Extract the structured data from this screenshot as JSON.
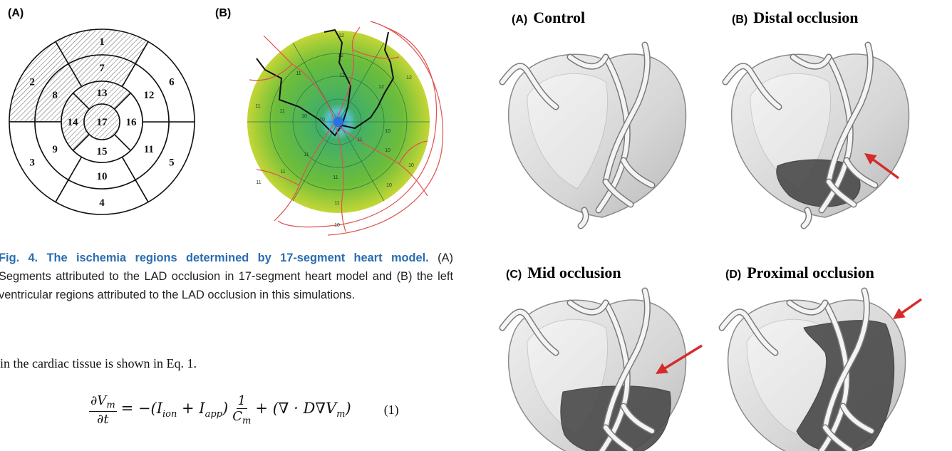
{
  "left_figure": {
    "panel_a": {
      "label": "(A)",
      "segments": [
        {
          "label": "1",
          "hatched": true
        },
        {
          "label": "2",
          "hatched": true
        },
        {
          "label": "3",
          "hatched": false
        },
        {
          "label": "4",
          "hatched": false
        },
        {
          "label": "5",
          "hatched": false
        },
        {
          "label": "6",
          "hatched": false
        },
        {
          "label": "7",
          "hatched": true
        },
        {
          "label": "8",
          "hatched": true
        },
        {
          "label": "9",
          "hatched": false
        },
        {
          "label": "10",
          "hatched": false
        },
        {
          "label": "11",
          "hatched": false
        },
        {
          "label": "12",
          "hatched": false
        },
        {
          "label": "13",
          "hatched": true
        },
        {
          "label": "14",
          "hatched": true
        },
        {
          "label": "15",
          "hatched": false
        },
        {
          "label": "16",
          "hatched": false
        },
        {
          "label": "17",
          "hatched": true
        }
      ]
    },
    "panel_b": {
      "label": "(B)",
      "region_labels": [
        "12",
        "12",
        "12",
        "12",
        "12",
        "11",
        "11",
        "11",
        "10",
        "10",
        "11",
        "10",
        "10",
        "10",
        "11",
        "11",
        "11",
        "11",
        "11",
        "10",
        "10"
      ]
    }
  },
  "caption": {
    "title": "Fig. 4. The ischemia regions determined by 17-segment heart model.",
    "body": "(A) Segments attributed to the LAD occlusion in 17-segment heart model and (B) the left ventricular regions attributed to the LAD occlusion in this simulations."
  },
  "body_text": "in the cardiac tissue is shown in Eq. 1.",
  "equation": {
    "frac1_num": [
      {
        "t": "∂V",
        "sub": "m"
      }
    ],
    "frac1_den": [
      {
        "t": "∂t"
      }
    ],
    "middle": [
      {
        "t": "= −(I",
        "sub": "ion"
      },
      {
        "t": " + I",
        "sub": "app"
      },
      {
        "t": ")"
      }
    ],
    "frac2_num": [
      {
        "t": "1"
      }
    ],
    "frac2_den": [
      {
        "t": "C",
        "sub": "m"
      }
    ],
    "tail": [
      {
        "t": "+ (∇ · D∇V",
        "sub": "m"
      },
      {
        "t": ")"
      }
    ],
    "number": "(1)"
  },
  "heart_panels": [
    {
      "label": "(A)",
      "title": "Control"
    },
    {
      "label": "(B)",
      "title": "Distal occlusion"
    },
    {
      "label": "(C)",
      "title": "Mid occlusion"
    },
    {
      "label": "(D)",
      "title": "Proximal occlusion"
    }
  ]
}
